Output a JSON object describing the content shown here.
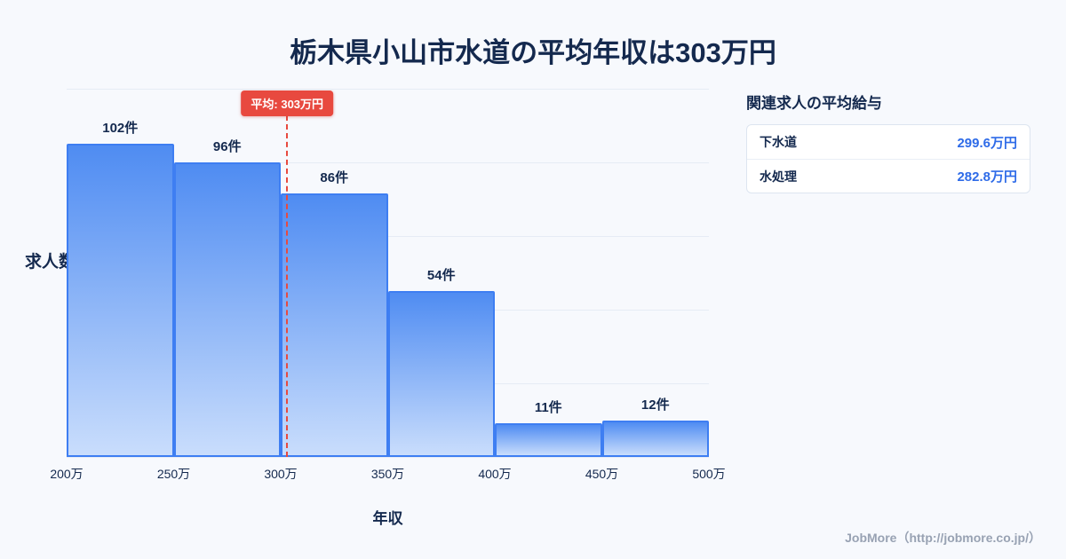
{
  "title": "栃木県小山市水道の平均年収は303万円",
  "chart_data": {
    "type": "bar",
    "title": "栃木県小山市水道の平均年収は303万円",
    "categories": [
      "200万-250万",
      "250万-300万",
      "300万-350万",
      "350万-400万",
      "400万-450万",
      "450万-500万"
    ],
    "values": [
      102,
      96,
      86,
      54,
      11,
      12
    ],
    "bar_labels": [
      "102件",
      "96件",
      "86件",
      "54件",
      "11件",
      "12件"
    ],
    "x_ticks": [
      "200万",
      "250万",
      "300万",
      "350万",
      "400万",
      "450万",
      "500万"
    ],
    "xlabel": "年収",
    "ylabel": "求人数",
    "ylim": [
      0,
      120
    ],
    "grid": true,
    "average_line": {
      "label": "平均: 303万円",
      "value": 303,
      "x_min": 200,
      "x_max": 500
    },
    "colors": {
      "bar_fill_top": "#4f8cf2",
      "bar_fill_bottom": "#c9ddfc",
      "bar_border": "#3e7ef2",
      "average_line": "#e8493f"
    }
  },
  "side_panel": {
    "heading": "関連求人の平均給与",
    "rows": [
      {
        "label": "下水道",
        "value": "299.6万円"
      },
      {
        "label": "水処理",
        "value": "282.8万円"
      }
    ],
    "value_color": "#2e6be8"
  },
  "footer": {
    "credit": "JobMore（http://jobmore.co.jp/）"
  }
}
